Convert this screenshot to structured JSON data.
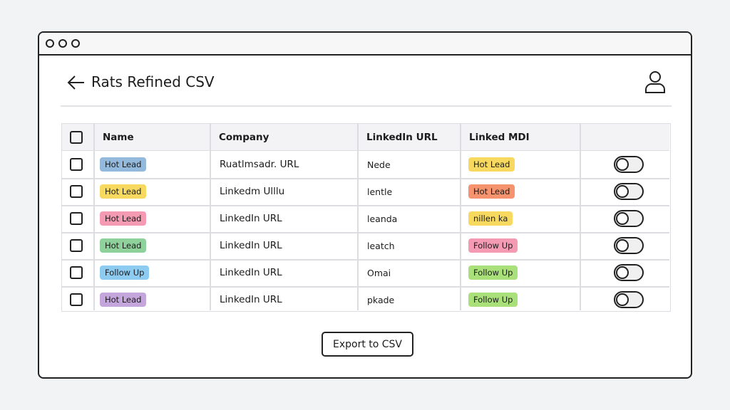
{
  "header": {
    "title": "Rats Refined CSV"
  },
  "table": {
    "columns": [
      "Name",
      "Company",
      "LinkedIn URL",
      "Linked MDI"
    ],
    "rows": [
      {
        "name": {
          "label": "Hot Lead",
          "color": "#93b9dc"
        },
        "company": "Ruatlmsadr. URL",
        "linkedin": "Nede",
        "status": {
          "label": "Hot Lead",
          "color": "#f6d95e"
        }
      },
      {
        "name": {
          "label": "Hot Lead",
          "color": "#f6d95e"
        },
        "company": "Linkedm Ulllu",
        "linkedin": "lentle",
        "status": {
          "label": "Hot Lead",
          "color": "#f4936e"
        }
      },
      {
        "name": {
          "label": "Hot Lead",
          "color": "#f49ab3"
        },
        "company": "LinkedIn URL",
        "linkedin": "leanda",
        "status": {
          "label": "nillen ka",
          "color": "#f6d95e"
        }
      },
      {
        "name": {
          "label": "Hot Lead",
          "color": "#8ed19a"
        },
        "company": "LinkedIn URL",
        "linkedin": "leatch",
        "status": {
          "label": "Follow Up",
          "color": "#f49ab3"
        }
      },
      {
        "name": {
          "label": "Follow Up",
          "color": "#8ecbf0"
        },
        "company": "LinkedIn URL",
        "linkedin": "Omai",
        "status": {
          "label": "Follow Up",
          "color": "#a9e07a"
        }
      },
      {
        "name": {
          "label": "Hot Lead",
          "color": "#c4a5dc"
        },
        "company": "LinkedIn URL",
        "linkedin": "pkade",
        "status": {
          "label": "Follow Up",
          "color": "#a9e07a"
        }
      }
    ]
  },
  "button": {
    "label": "Export to CSV"
  }
}
